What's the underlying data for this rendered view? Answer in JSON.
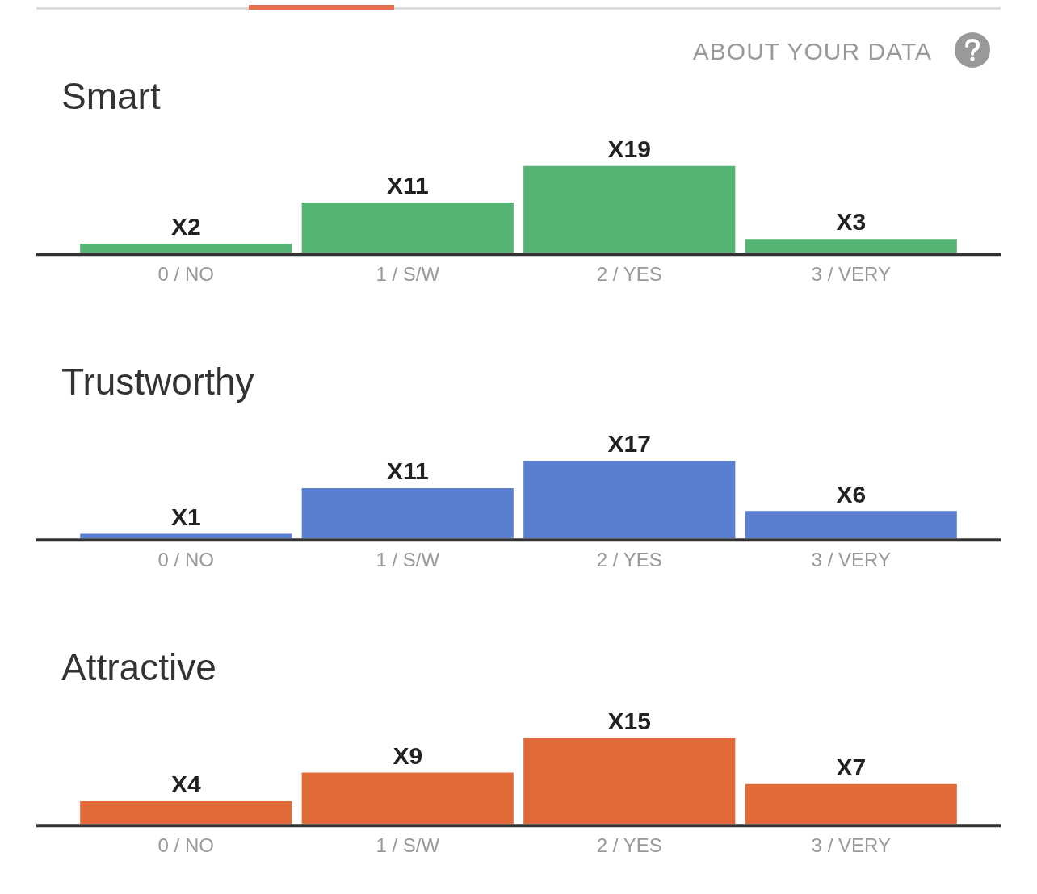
{
  "chart_data": [
    {
      "type": "bar",
      "title": "Smart",
      "annotations": [
        "ABOUT YOUR DATA"
      ],
      "categories": [
        "0 / NO",
        "1 / S/W",
        "2 / YES",
        "3 / VERY"
      ],
      "values": [
        2,
        11,
        19,
        3
      ],
      "value_labels": [
        "X2",
        "X11",
        "X19",
        "X3"
      ],
      "color": "#55b374",
      "grid": false,
      "legend": false
    },
    {
      "type": "bar",
      "title": "Trustworthy",
      "categories": [
        "0 / NO",
        "1 / S/W",
        "2 / YES",
        "3 / VERY"
      ],
      "values": [
        1,
        11,
        17,
        6
      ],
      "value_labels": [
        "X1",
        "X11",
        "X17",
        "X6"
      ],
      "color": "#5a7fd1",
      "grid": false,
      "legend": false
    },
    {
      "type": "bar",
      "title": "Attractive",
      "categories": [
        "0 / NO",
        "1 / S/W",
        "2 / YES",
        "3 / VERY"
      ],
      "values": [
        4,
        9,
        15,
        7
      ],
      "value_labels": [
        "X4",
        "X9",
        "X15",
        "X7"
      ],
      "color": "#e06b38",
      "grid": false,
      "legend": false
    }
  ]
}
